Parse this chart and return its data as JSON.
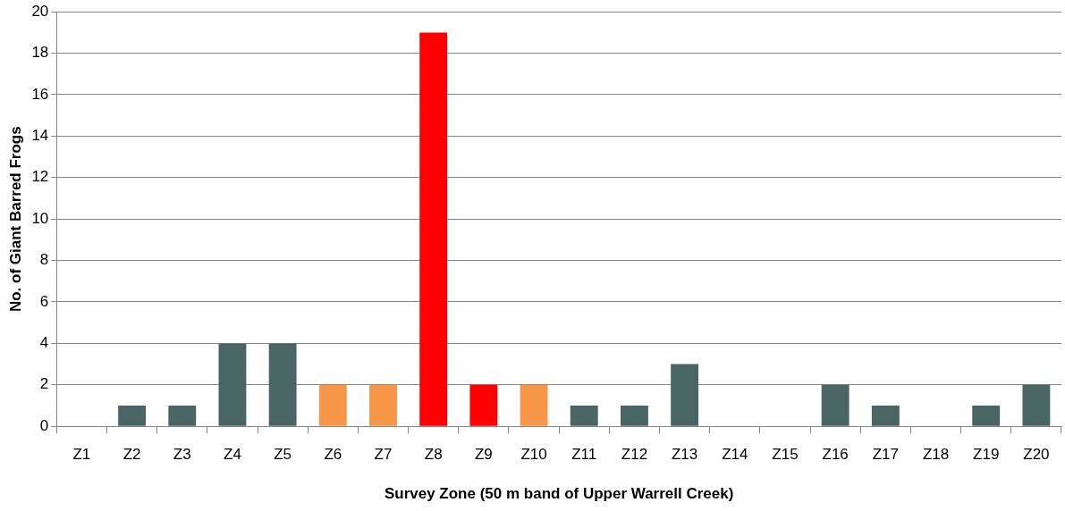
{
  "chart_data": {
    "type": "bar",
    "xlabel": "Survey Zone (50 m band of Upper Warrell Creek)",
    "ylabel": "No. of Giant Barred Frogs",
    "categories": [
      "Z1",
      "Z2",
      "Z3",
      "Z4",
      "Z5",
      "Z6",
      "Z7",
      "Z8",
      "Z9",
      "Z10",
      "Z11",
      "Z12",
      "Z13",
      "Z14",
      "Z15",
      "Z16",
      "Z17",
      "Z18",
      "Z19",
      "Z20"
    ],
    "values": [
      0,
      1,
      1,
      4,
      4,
      2,
      2,
      19,
      2,
      2,
      1,
      1,
      3,
      0,
      0,
      2,
      1,
      0,
      1,
      2
    ],
    "colors": [
      "#4a6664",
      "#4a6664",
      "#4a6664",
      "#4a6664",
      "#4a6664",
      "#f79646",
      "#f79646",
      "#ff0000",
      "#ff0000",
      "#f79646",
      "#4a6664",
      "#4a6664",
      "#4a6664",
      "#4a6664",
      "#4a6664",
      "#4a6664",
      "#4a6664",
      "#4a6664",
      "#4a6664",
      "#4a6664"
    ],
    "ylim": [
      0,
      20
    ],
    "yticks": [
      0,
      2,
      4,
      6,
      8,
      10,
      12,
      14,
      16,
      18,
      20
    ],
    "grid": "y",
    "legend": false
  }
}
